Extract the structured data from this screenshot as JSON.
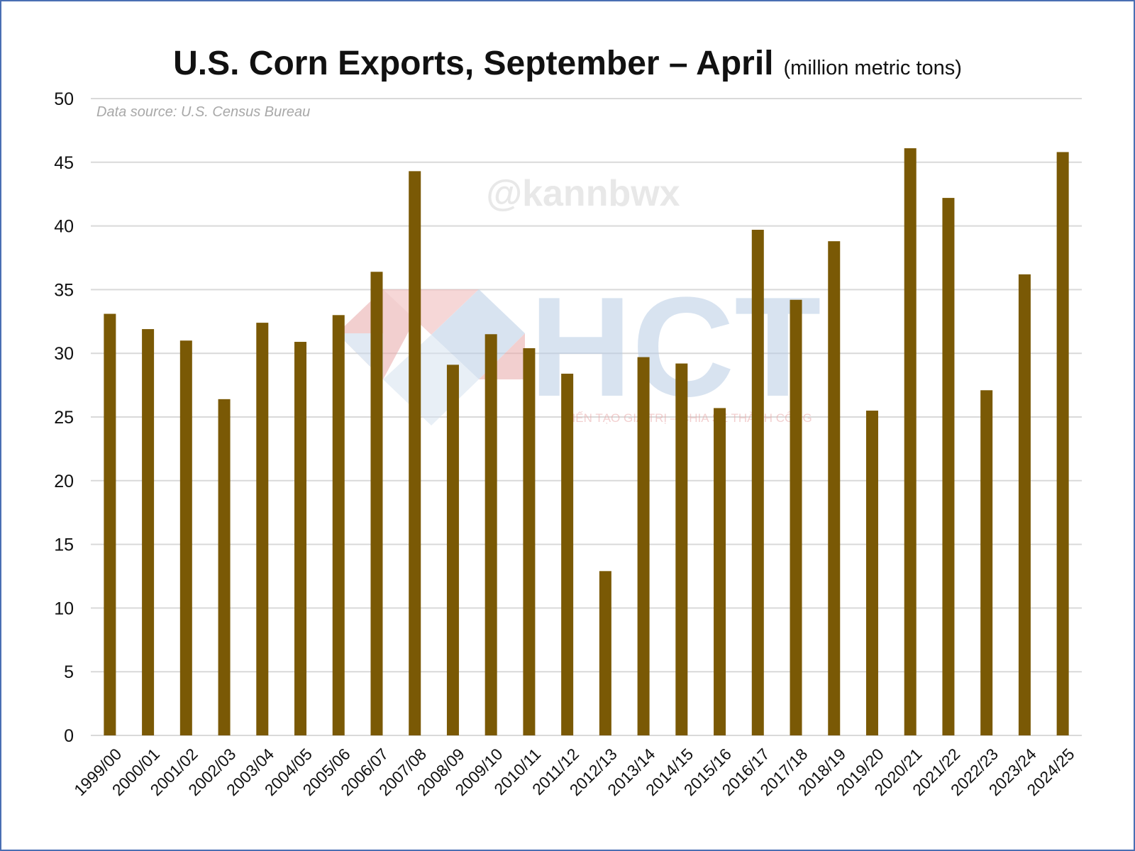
{
  "title": "U.S. Corn Exports, September – April",
  "subtitle": "(million metric tons)",
  "source_note": "Data source: U.S. Census Bureau",
  "watermarks": {
    "handle": "@kannbwx",
    "logo_text": "HCT",
    "logo_tagline": "KIẾN TẠO GIÁ TRỊ – CHIA SẺ THÀNH CÔNG"
  },
  "colors": {
    "bar": "#7a5905",
    "grid": "#d9d9d9",
    "text": "#111111",
    "frame": "#4a6fb3"
  },
  "chart_data": {
    "type": "bar",
    "title": "U.S. Corn Exports, September – April",
    "ylabel": "",
    "xlabel": "",
    "ylim": [
      0,
      50
    ],
    "yticks": [
      0,
      5,
      10,
      15,
      20,
      25,
      30,
      35,
      40,
      45,
      50
    ],
    "grid": true,
    "categories": [
      "1999/00",
      "2000/01",
      "2001/02",
      "2002/03",
      "2003/04",
      "2004/05",
      "2005/06",
      "2006/07",
      "2007/08",
      "2008/09",
      "2009/10",
      "2010/11",
      "2011/12",
      "2012/13",
      "2013/14",
      "2014/15",
      "2015/16",
      "2016/17",
      "2017/18",
      "2018/19",
      "2019/20",
      "2020/21",
      "2021/22",
      "2022/23",
      "2023/24",
      "2024/25"
    ],
    "values": [
      33.1,
      31.9,
      31.0,
      26.4,
      32.4,
      30.9,
      33.0,
      36.4,
      44.3,
      29.1,
      31.5,
      30.4,
      28.4,
      12.9,
      29.7,
      29.2,
      25.7,
      39.7,
      34.2,
      38.8,
      25.5,
      46.1,
      42.2,
      27.1,
      36.2,
      45.8
    ]
  }
}
